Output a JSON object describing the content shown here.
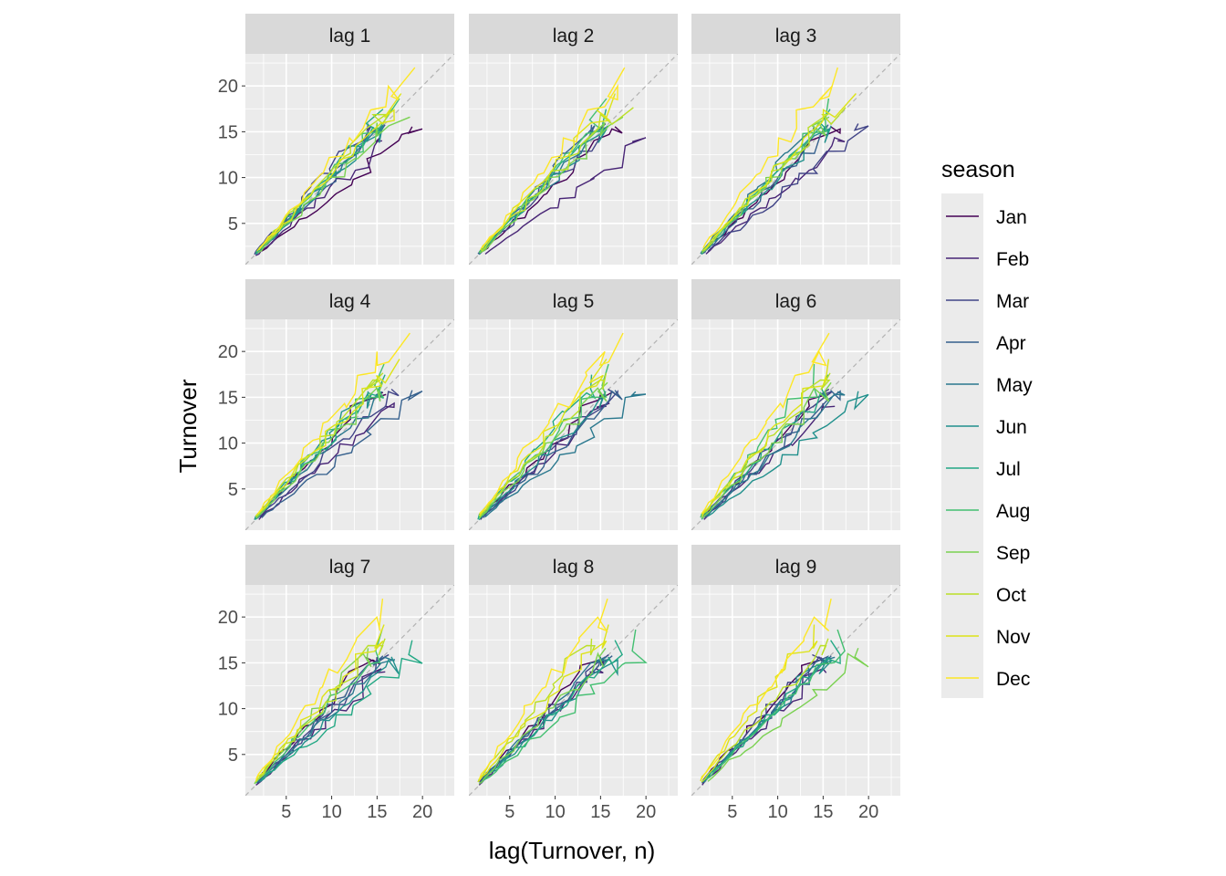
{
  "chart_data": {
    "type": "line",
    "xlabel": "lag(Turnover, n)",
    "ylabel": "Turnover",
    "xlim": [
      0.5,
      23.5
    ],
    "ylim": [
      0.5,
      23.5
    ],
    "x_ticks": [
      5,
      10,
      15,
      20
    ],
    "y_ticks": [
      5,
      10,
      15,
      20
    ],
    "grid": true,
    "reference_line": "y = x (dashed grey)",
    "legend": {
      "title": "season",
      "placement": "right",
      "entries": [
        "Jan",
        "Feb",
        "Mar",
        "Apr",
        "May",
        "Jun",
        "Jul",
        "Aug",
        "Sep",
        "Oct",
        "Nov",
        "Dec"
      ],
      "colors": [
        "#440154",
        "#482576",
        "#414487",
        "#35608d",
        "#2a788e",
        "#21908c",
        "#22a884",
        "#43bf71",
        "#7ad151",
        "#bbdf27",
        "#dde318",
        "#fde725"
      ]
    },
    "panels": [
      "lag 1",
      "lag 2",
      "lag 3",
      "lag 4",
      "lag 5",
      "lag 6",
      "lag 7",
      "lag 8",
      "lag 9"
    ],
    "series_note": "Each panel plots Turnover against its value n months earlier, one path per month of year; values range from about 1.5 to 22."
  }
}
